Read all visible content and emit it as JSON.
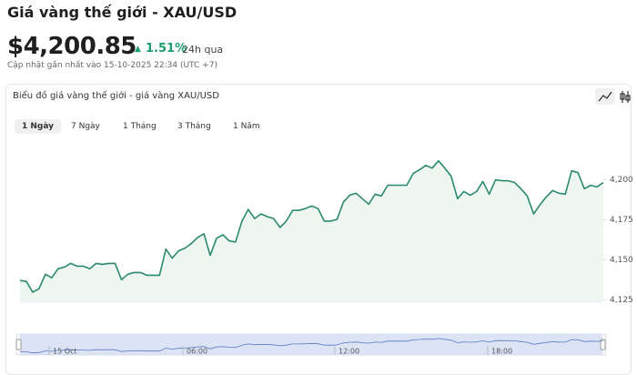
{
  "header": {
    "title": "Giá vàng thế giới - XAU/USD",
    "price": "$4,200.85",
    "change": "1.51%",
    "period": "24h qua",
    "updated": "Cập nhật gần nhất vào 15-10-2025 22:34 (UTC +7)"
  },
  "tabs": [
    "1 Ngày",
    "7 Ngày",
    "1 Tháng",
    "3 Tháng",
    "1 Năm"
  ],
  "chart_data": {
    "type": "line",
    "title": "Biểu đồ giá vàng thế giới - giá vàng XAU/USD",
    "values": [
      4137.1,
      4136.5,
      4129.8,
      4132.0,
      4141.0,
      4138.8,
      4144.4,
      4145.5,
      4147.8,
      4146.1,
      4146.1,
      4144.4,
      4147.8,
      4147.2,
      4147.8,
      4147.8,
      4137.6,
      4141.0,
      4142.1,
      4142.1,
      4140.4,
      4140.4,
      4140.4,
      4156.7,
      4151.1,
      4155.6,
      4157.3,
      4160.1,
      4164.0,
      4166.3,
      4152.8,
      4163.5,
      4165.7,
      4161.8,
      4161.2,
      4174.2,
      4181.5,
      4175.8,
      4178.7,
      4177.0,
      4175.8,
      4170.2,
      4174.2,
      4180.9,
      4180.9,
      4182.0,
      4183.7,
      4182.0,
      4174.2,
      4174.2,
      4175.3,
      4186.0,
      4190.4,
      4191.6,
      4188.2,
      4184.8,
      4191.0,
      4189.9,
      4196.6,
      4196.6,
      4196.6,
      4196.6,
      4203.9,
      4206.2,
      4209.0,
      4207.3,
      4211.8,
      4207.3,
      4202.2,
      4188.2,
      4192.7,
      4190.4,
      4192.7,
      4198.9,
      4191.0,
      4200.0,
      4199.4,
      4199.4,
      4198.3,
      4194.4,
      4189.9,
      4178.7,
      4184.3,
      4189.3,
      4193.3,
      4191.6,
      4191.0,
      4205.6,
      4204.5,
      4194.4,
      4196.6,
      4195.5,
      4198.3
    ],
    "color": "#2a8a6a",
    "ylim": [
      4123,
      4227
    ],
    "yticks": [
      {
        "value": 4125,
        "label": "4,125"
      },
      {
        "value": 4150,
        "label": "4,150"
      },
      {
        "value": 4175,
        "label": "4,175"
      },
      {
        "value": 4200,
        "label": "4,200"
      }
    ],
    "navigator_labels": [
      "15 Oct",
      "06:00",
      "12:00",
      "18:00"
    ]
  }
}
